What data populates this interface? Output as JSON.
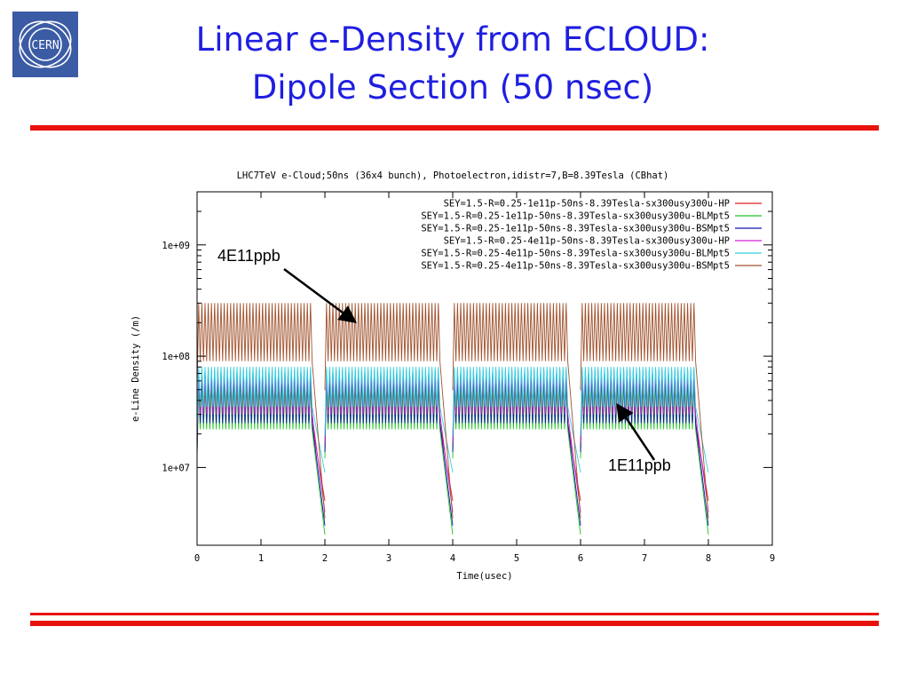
{
  "slide": {
    "title_line1": "Linear e-Density from ECLOUD:",
    "title_line2": "Dipole Section (50 nsec)",
    "logo_text": "CERN",
    "colors": {
      "title": "#1f1fe0",
      "rule": "#e8120c",
      "logo_bg": "#3b5ba5"
    }
  },
  "annotations": [
    {
      "text": "4E11ppb"
    },
    {
      "text": "1E11ppb"
    }
  ],
  "chart_data": {
    "type": "line",
    "title": "LHC7TeV e-Cloud;50ns (36x4 bunch), Photoelectron,idistr=7,B=8.39Tesla (CBhat)",
    "xlabel": "Time(usec)",
    "ylabel": "e-Line Density (/m)",
    "xlim": [
      0,
      9
    ],
    "ylim": [
      2000000,
      3000000000
    ],
    "yscale": "log",
    "xticks": [
      "0",
      "1",
      "2",
      "3",
      "4",
      "5",
      "6",
      "7",
      "8",
      "9"
    ],
    "yticks": [
      {
        "value": 10000000,
        "label": "1e+07"
      },
      {
        "value": 100000000,
        "label": "1e+08"
      },
      {
        "value": 1000000000,
        "label": "1e+09"
      }
    ],
    "legend_position": "top-right",
    "train_windows_usec": [
      [
        0.0,
        1.8
      ],
      [
        2.0,
        3.8
      ],
      [
        4.0,
        5.8
      ],
      [
        6.0,
        7.8
      ]
    ],
    "series": [
      {
        "name": "SEY=1.5-R=0.25-1e11p-50ns-8.39Tesla-sx300usy300u-HP",
        "color": "#e02020",
        "low": 25000000,
        "high": 60000000,
        "gap_min": 5000000
      },
      {
        "name": "SEY=1.5-R=0.25-1e11p-50ns-8.39Tesla-sx300usy300u-BLMpt5",
        "color": "#20c020",
        "low": 22000000,
        "high": 55000000,
        "gap_min": 2500000
      },
      {
        "name": "SEY=1.5-R=0.25-1e11p-50ns-8.39Tesla-sx300usy300u-BSMpt5",
        "color": "#1010b0",
        "low": 25000000,
        "high": 75000000,
        "gap_min": 3000000
      },
      {
        "name": "SEY=1.5-R=0.25-4e11p-50ns-8.39Tesla-sx300usy300u-HP",
        "color": "#d020d0",
        "low": 30000000,
        "high": 70000000,
        "gap_min": 4000000
      },
      {
        "name": "SEY=1.5-R=0.25-4e11p-50ns-8.39Tesla-sx300usy300u-BLMpt5",
        "color": "#30d0e0",
        "low": 35000000,
        "high": 80000000,
        "gap_min": 9000000
      },
      {
        "name": "SEY=1.5-R=0.25-4e11p-50ns-8.39Tesla-sx300usy300u-BSMpt5",
        "color": "#a0522d",
        "low": 90000000,
        "high": 300000000,
        "gap_min": 3500000
      }
    ]
  }
}
